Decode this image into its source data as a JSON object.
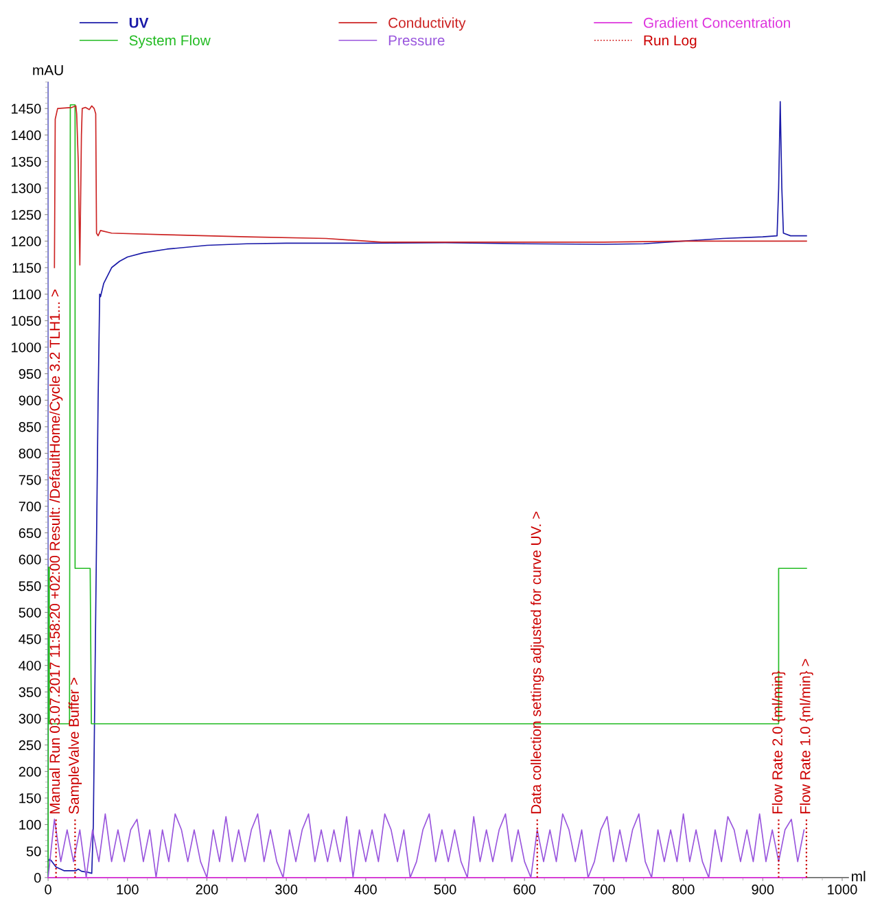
{
  "chart_data": {
    "type": "line",
    "xlabel": "ml",
    "ylabel": "mAU",
    "xlim": [
      0,
      1008
    ],
    "ylim": [
      0,
      1500
    ],
    "xticks": [
      0,
      100,
      200,
      300,
      400,
      500,
      600,
      700,
      800,
      900,
      1000
    ],
    "yticks": [
      0,
      50,
      100,
      150,
      200,
      250,
      300,
      350,
      400,
      450,
      500,
      550,
      600,
      650,
      700,
      750,
      800,
      850,
      900,
      950,
      1000,
      1050,
      1100,
      1150,
      1200,
      1250,
      1300,
      1350,
      1400,
      1450
    ],
    "grid": false,
    "legend": "top",
    "series": [
      {
        "name": "UV",
        "color": "#1a1aa8",
        "x": [
          0,
          2,
          5,
          10,
          20,
          35,
          38,
          42,
          50,
          55,
          57,
          60,
          63,
          65,
          66,
          70,
          80,
          90,
          100,
          120,
          150,
          200,
          250,
          300,
          400,
          500,
          600,
          700,
          750,
          800,
          850,
          900,
          918,
          920,
          922,
          924,
          926,
          935,
          955
        ],
        "values": [
          30,
          35,
          30,
          20,
          13,
          13,
          16,
          12,
          10,
          8,
          100,
          500,
          900,
          1100,
          1095,
          1120,
          1150,
          1162,
          1170,
          1178,
          1185,
          1192,
          1195,
          1196,
          1196,
          1197,
          1195,
          1194,
          1195,
          1200,
          1205,
          1208,
          1210,
          1300,
          1463,
          1300,
          1215,
          1210,
          1210
        ]
      },
      {
        "name": "System Flow",
        "color": "#22bb22",
        "x": [
          0,
          0.5,
          1.5,
          1.5,
          27,
          28,
          34,
          34,
          53,
          54.5,
          920,
          920,
          955
        ],
        "values": [
          0,
          585,
          585,
          290,
          290,
          1457,
          1457,
          583,
          583,
          290,
          290,
          583,
          583
        ]
      },
      {
        "name": "Conductivity",
        "color": "#cc2222",
        "x": [
          8,
          9,
          12,
          30,
          35,
          36,
          38,
          40,
          42,
          43,
          47,
          52,
          55,
          58,
          60,
          61,
          63,
          66,
          80,
          150,
          250,
          350,
          420,
          500,
          600,
          700,
          800,
          900,
          955
        ],
        "values": [
          1150,
          1430,
          1450,
          1452,
          1455,
          1440,
          1350,
          1155,
          1400,
          1450,
          1452,
          1448,
          1455,
          1450,
          1440,
          1215,
          1210,
          1220,
          1215,
          1212,
          1208,
          1205,
          1198,
          1198,
          1198,
          1198,
          1200,
          1200,
          1200
        ]
      },
      {
        "name": "Pressure",
        "color": "#9955dd",
        "x": [
          0,
          8,
          16,
          24,
          32,
          40,
          48,
          56,
          64,
          72,
          80,
          88,
          96,
          104,
          112,
          120,
          128,
          136,
          144,
          152,
          160,
          168,
          176,
          184,
          192,
          200,
          208,
          216,
          224,
          232,
          240,
          248,
          256,
          264,
          272,
          280,
          288,
          296,
          304,
          312,
          320,
          328,
          336,
          344,
          352,
          360,
          368,
          376,
          384,
          392,
          400,
          408,
          416,
          424,
          432,
          440,
          448,
          456,
          464,
          472,
          480,
          488,
          496,
          504,
          512,
          520,
          528,
          536,
          544,
          552,
          560,
          568,
          576,
          584,
          592,
          600,
          608,
          616,
          624,
          632,
          640,
          648,
          656,
          664,
          672,
          680,
          688,
          696,
          704,
          712,
          720,
          728,
          736,
          744,
          752,
          760,
          768,
          776,
          784,
          792,
          800,
          808,
          816,
          824,
          832,
          840,
          848,
          856,
          864,
          872,
          880,
          888,
          896,
          904,
          912,
          920,
          928,
          936,
          944,
          952
        ],
        "values": [
          0,
          110,
          30,
          90,
          30,
          90,
          0,
          90,
          30,
          120,
          30,
          90,
          30,
          90,
          110,
          30,
          90,
          0,
          90,
          30,
          120,
          90,
          30,
          90,
          30,
          0,
          90,
          30,
          115,
          30,
          90,
          30,
          90,
          120,
          30,
          90,
          30,
          0,
          90,
          30,
          90,
          120,
          30,
          90,
          30,
          90,
          30,
          115,
          0,
          90,
          30,
          90,
          30,
          120,
          90,
          30,
          90,
          0,
          30,
          90,
          120,
          30,
          90,
          30,
          90,
          30,
          0,
          115,
          30,
          90,
          30,
          90,
          120,
          30,
          90,
          30,
          0,
          90,
          30,
          90,
          30,
          120,
          90,
          30,
          90,
          0,
          30,
          90,
          115,
          30,
          90,
          30,
          90,
          120,
          30,
          0,
          90,
          30,
          90,
          30,
          120,
          30,
          90,
          30,
          0,
          90,
          30,
          115,
          90,
          30,
          90,
          30,
          120,
          30,
          90,
          30,
          90,
          110,
          30,
          90
        ]
      },
      {
        "name": "Gradient Concentration",
        "color": "#dd33dd",
        "x": [
          0,
          955
        ],
        "values": [
          0,
          0
        ]
      },
      {
        "name": "Run Log",
        "color": "#cc0000",
        "line_style": "dotted",
        "x": [
          10,
          10,
          null,
          34,
          34,
          null,
          616,
          616,
          null,
          920,
          920,
          null,
          955,
          955
        ],
        "values": [
          0,
          110,
          null,
          0,
          110,
          null,
          0,
          110,
          null,
          0,
          110,
          null,
          0,
          110
        ]
      }
    ],
    "annotations": [
      {
        "text": "Manual Run 03.07.2017 11:58:20 +02:00 Result: /DefaultHome/Cycle 3.2 TLH1... >",
        "x": 10,
        "y": 110
      },
      {
        "text": "SampleValve Buffer >",
        "x": 34,
        "y": 110
      },
      {
        "text": "Data collection settings adjusted for curve UV. >",
        "x": 616,
        "y": 110
      },
      {
        "text": "Flow Rate 2.0 {ml/min}",
        "x": 920,
        "y": 110
      },
      {
        "text": "Flow Rate 1.0 {ml/min} >",
        "x": 955,
        "y": 110
      }
    ]
  }
}
